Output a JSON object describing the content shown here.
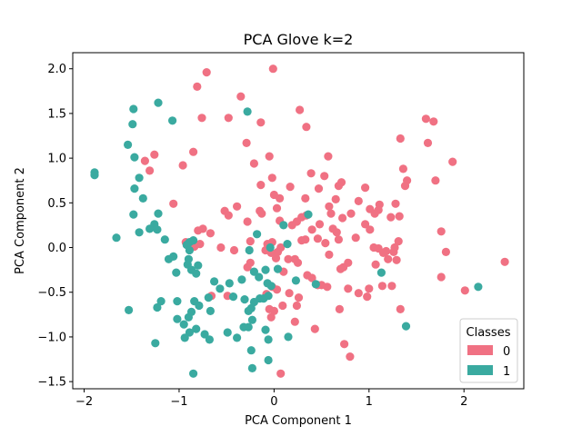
{
  "chart_data": {
    "type": "scatter",
    "title": "PCA Glove k=2",
    "xlabel": "PCA Component 1",
    "ylabel": "PCA Component 2",
    "xlim": [
      -2.12,
      2.63
    ],
    "ylim": [
      -1.58,
      2.18
    ],
    "xticks": [
      -2,
      -1,
      0,
      1,
      2
    ],
    "xtick_labels": [
      "−2",
      "−1",
      "0",
      "1",
      "2"
    ],
    "yticks": [
      -1.5,
      -1.0,
      -0.5,
      0.0,
      0.5,
      1.0,
      1.5,
      2.0
    ],
    "ytick_labels": [
      "−1.5",
      "−1.0",
      "−0.5",
      "0.0",
      "0.5",
      "1.0",
      "1.5",
      "2.0"
    ],
    "grid": false,
    "legend": {
      "title": "Classes",
      "placement": "lower-right"
    },
    "series": [
      {
        "name": "0",
        "color": "#f07183",
        "points": [
          [
            -0.81,
            1.8
          ],
          [
            -0.71,
            1.96
          ],
          [
            -0.35,
            1.69
          ],
          [
            -0.01,
            2.0
          ],
          [
            0.27,
            1.54
          ],
          [
            -0.76,
            1.45
          ],
          [
            -0.48,
            1.45
          ],
          [
            -0.14,
            1.4
          ],
          [
            0.34,
            1.35
          ],
          [
            1.6,
            1.44
          ],
          [
            1.68,
            1.41
          ],
          [
            1.33,
            1.22
          ],
          [
            -0.29,
            1.17
          ],
          [
            1.62,
            1.17
          ],
          [
            -1.26,
            1.04
          ],
          [
            -0.85,
            1.07
          ],
          [
            -0.05,
            1.02
          ],
          [
            0.57,
            1.02
          ],
          [
            1.88,
            0.96
          ],
          [
            -1.36,
            0.97
          ],
          [
            -0.96,
            0.92
          ],
          [
            -0.21,
            0.94
          ],
          [
            -1.31,
            0.86
          ],
          [
            1.36,
            0.88
          ],
          [
            0.39,
            0.83
          ],
          [
            0.53,
            0.8
          ],
          [
            -0.02,
            0.78
          ],
          [
            0.71,
            0.73
          ],
          [
            1.4,
            0.75
          ],
          [
            1.7,
            0.75
          ],
          [
            -0.14,
            0.7
          ],
          [
            0.17,
            0.68
          ],
          [
            0.47,
            0.66
          ],
          [
            0.68,
            0.69
          ],
          [
            0.96,
            0.67
          ],
          [
            1.38,
            0.69
          ],
          [
            -1.06,
            0.49
          ],
          [
            0.0,
            0.59
          ],
          [
            0.06,
            0.55
          ],
          [
            0.33,
            0.55
          ],
          [
            0.65,
            0.54
          ],
          [
            0.89,
            0.52
          ],
          [
            -0.39,
            0.46
          ],
          [
            -0.15,
            0.41
          ],
          [
            0.03,
            0.44
          ],
          [
            0.58,
            0.46
          ],
          [
            1.11,
            0.48
          ],
          [
            1.28,
            0.49
          ],
          [
            -0.52,
            0.41
          ],
          [
            -0.48,
            0.36
          ],
          [
            -0.13,
            0.38
          ],
          [
            -0.28,
            0.29
          ],
          [
            0.29,
            0.34
          ],
          [
            0.34,
            0.36
          ],
          [
            0.6,
            0.38
          ],
          [
            0.72,
            0.33
          ],
          [
            0.81,
            0.38
          ],
          [
            1.01,
            0.43
          ],
          [
            1.1,
            0.42
          ],
          [
            1.23,
            0.34
          ],
          [
            1.32,
            0.35
          ],
          [
            -0.75,
            0.21
          ],
          [
            -0.67,
            0.16
          ],
          [
            -0.8,
            0.19
          ],
          [
            0.06,
            0.3
          ],
          [
            0.24,
            0.29
          ],
          [
            0.19,
            0.25
          ],
          [
            0.48,
            0.26
          ],
          [
            0.4,
            0.2
          ],
          [
            0.62,
            0.21
          ],
          [
            0.66,
            0.17
          ],
          [
            0.96,
            0.26
          ],
          [
            1.01,
            0.2
          ],
          [
            1.06,
            0.38
          ],
          [
            1.76,
            0.18
          ],
          [
            -0.93,
            0.06
          ],
          [
            -0.78,
            0.04
          ],
          [
            -0.84,
            0.01
          ],
          [
            -0.56,
            0.0
          ],
          [
            -0.25,
            0.07
          ],
          [
            -0.07,
            0.04
          ],
          [
            -0.02,
            0.06
          ],
          [
            0.07,
            0.0
          ],
          [
            0.29,
            0.08
          ],
          [
            0.33,
            0.09
          ],
          [
            0.54,
            0.05
          ],
          [
            0.46,
            0.1
          ],
          [
            0.68,
            0.09
          ],
          [
            0.86,
            0.11
          ],
          [
            1.05,
            0.0
          ],
          [
            1.1,
            -0.01
          ],
          [
            1.18,
            -0.04
          ],
          [
            1.27,
            0.0
          ],
          [
            1.31,
            0.07
          ],
          [
            1.81,
            -0.05
          ],
          [
            -0.42,
            -0.03
          ],
          [
            -0.09,
            -0.03
          ],
          [
            -0.03,
            -0.06
          ],
          [
            0.04,
            -0.05
          ],
          [
            0.02,
            -0.12
          ],
          [
            0.15,
            -0.13
          ],
          [
            0.58,
            -0.08
          ],
          [
            1.15,
            -0.06
          ],
          [
            1.2,
            -0.13
          ],
          [
            1.29,
            -0.14
          ],
          [
            1.26,
            -0.05
          ],
          [
            -0.25,
            -0.17
          ],
          [
            -0.28,
            -0.22
          ],
          [
            0.22,
            -0.13
          ],
          [
            0.25,
            -0.17
          ],
          [
            0.73,
            -0.22
          ],
          [
            0.78,
            -0.17
          ],
          [
            1.07,
            -0.19
          ],
          [
            0.1,
            -0.27
          ],
          [
            0.35,
            -0.31
          ],
          [
            0.7,
            -0.24
          ],
          [
            0.5,
            -0.42
          ],
          [
            0.46,
            -0.42
          ],
          [
            0.56,
            -0.44
          ],
          [
            0.78,
            -0.46
          ],
          [
            1.0,
            -0.46
          ],
          [
            1.14,
            -0.43
          ],
          [
            1.24,
            -0.43
          ],
          [
            1.76,
            -0.33
          ],
          [
            2.43,
            -0.16
          ],
          [
            2.01,
            -0.48
          ],
          [
            0.03,
            -0.47
          ],
          [
            -0.66,
            -0.54
          ],
          [
            -0.08,
            -0.52
          ],
          [
            0.16,
            -0.51
          ],
          [
            0.26,
            -0.56
          ],
          [
            0.89,
            -0.51
          ],
          [
            0.98,
            -0.55
          ],
          [
            -0.05,
            -0.69
          ],
          [
            0.0,
            -0.71
          ],
          [
            0.09,
            -0.65
          ],
          [
            0.24,
            -0.65
          ],
          [
            0.69,
            -0.69
          ],
          [
            1.33,
            -0.69
          ],
          [
            -0.03,
            -0.78
          ],
          [
            0.22,
            -0.83
          ],
          [
            0.43,
            -0.91
          ],
          [
            0.74,
            -1.08
          ],
          [
            0.8,
            -1.22
          ],
          [
            0.07,
            -1.41
          ],
          [
            -0.49,
            -0.54
          ],
          [
            -0.02,
            -0.44
          ],
          [
            0.4,
            -0.34
          ]
        ]
      },
      {
        "name": "1",
        "color": "#3aaaa0",
        "points": [
          [
            -1.48,
            1.55
          ],
          [
            -1.22,
            1.62
          ],
          [
            -0.28,
            1.52
          ],
          [
            -1.49,
            1.38
          ],
          [
            -1.07,
            1.42
          ],
          [
            -1.54,
            1.15
          ],
          [
            -1.47,
            1.01
          ],
          [
            -1.89,
            0.84
          ],
          [
            -1.89,
            0.81
          ],
          [
            -1.42,
            0.78
          ],
          [
            -1.47,
            0.66
          ],
          [
            -1.38,
            0.55
          ],
          [
            -1.48,
            0.37
          ],
          [
            -1.22,
            0.38
          ],
          [
            -1.26,
            0.26
          ],
          [
            -1.31,
            0.21
          ],
          [
            -1.42,
            0.17
          ],
          [
            -1.23,
            0.2
          ],
          [
            -1.66,
            0.11
          ],
          [
            -1.15,
            0.09
          ],
          [
            -0.92,
            0.03
          ],
          [
            -0.85,
            0.08
          ],
          [
            -0.89,
            0.06
          ],
          [
            -0.89,
            -0.03
          ],
          [
            -1.06,
            -0.1
          ],
          [
            -1.03,
            -0.28
          ],
          [
            -1.11,
            -0.13
          ],
          [
            -0.9,
            -0.13
          ],
          [
            -0.91,
            -0.19
          ],
          [
            -0.87,
            -0.25
          ],
          [
            -0.82,
            -0.29
          ],
          [
            -0.8,
            -0.2
          ],
          [
            -0.63,
            -0.38
          ],
          [
            -0.57,
            -0.46
          ],
          [
            -0.47,
            -0.4
          ],
          [
            -0.34,
            -0.36
          ],
          [
            -0.43,
            -0.55
          ],
          [
            -0.69,
            -0.56
          ],
          [
            -0.84,
            -0.6
          ],
          [
            -0.79,
            -0.65
          ],
          [
            -0.67,
            -0.71
          ],
          [
            -0.87,
            -0.72
          ],
          [
            -0.9,
            -0.78
          ],
          [
            -0.95,
            -0.86
          ],
          [
            -0.89,
            -0.95
          ],
          [
            -0.82,
            -0.91
          ],
          [
            -0.73,
            -0.97
          ],
          [
            -0.68,
            -1.03
          ],
          [
            -0.94,
            -1.01
          ],
          [
            -0.49,
            -0.95
          ],
          [
            -0.39,
            -1.01
          ],
          [
            -0.32,
            -0.89
          ],
          [
            -0.27,
            -0.89
          ],
          [
            -0.23,
            -0.81
          ],
          [
            -0.27,
            -0.71
          ],
          [
            -0.24,
            -0.68
          ],
          [
            -0.31,
            -0.58
          ],
          [
            -0.21,
            -0.61
          ],
          [
            -0.15,
            -0.57
          ],
          [
            -0.11,
            -0.57
          ],
          [
            -0.06,
            -0.54
          ],
          [
            -0.03,
            -0.43
          ],
          [
            0.04,
            -0.24
          ],
          [
            -0.09,
            -0.25
          ],
          [
            -0.16,
            -0.33
          ],
          [
            -0.21,
            -0.27
          ],
          [
            -0.26,
            -0.03
          ],
          [
            -0.18,
            0.15
          ],
          [
            -0.04,
            0.0
          ],
          [
            0.1,
            0.25
          ],
          [
            0.36,
            0.37
          ],
          [
            0.14,
            0.04
          ],
          [
            -0.07,
            -0.4
          ],
          [
            0.23,
            -0.37
          ],
          [
            0.44,
            -0.41
          ],
          [
            -1.19,
            -0.6
          ],
          [
            -1.23,
            -0.67
          ],
          [
            -1.53,
            -0.7
          ],
          [
            -1.02,
            -0.6
          ],
          [
            -1.02,
            -0.8
          ],
          [
            -1.25,
            -1.07
          ],
          [
            -0.85,
            -1.41
          ],
          [
            -0.23,
            -1.35
          ],
          [
            -0.24,
            -1.15
          ],
          [
            -0.06,
            -1.26
          ],
          [
            -0.06,
            -1.03
          ],
          [
            -0.09,
            -0.92
          ],
          [
            0.15,
            -1.0
          ],
          [
            1.13,
            -0.28
          ],
          [
            1.39,
            -0.88
          ],
          [
            2.15,
            -0.44
          ]
        ]
      }
    ]
  }
}
